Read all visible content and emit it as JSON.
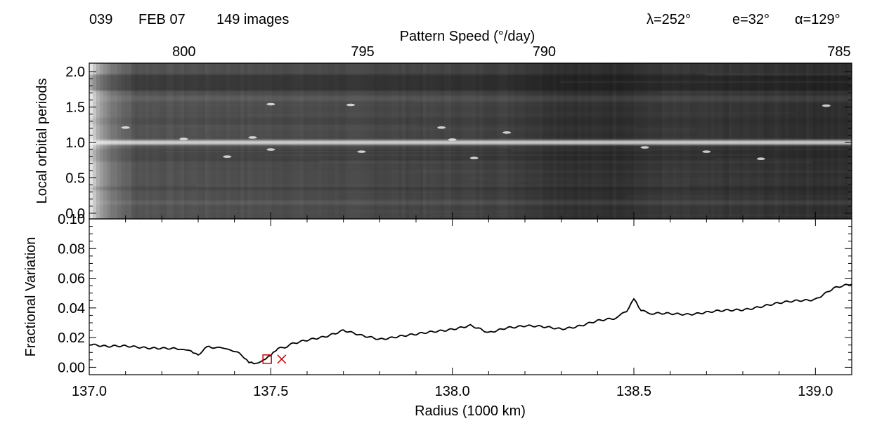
{
  "header": {
    "left": [
      "039",
      "FEB 07",
      "149 images"
    ],
    "right": [
      "λ=252°",
      "e=32°",
      "α=129°"
    ]
  },
  "chart_data": [
    {
      "type": "heatmap",
      "top_axis": {
        "label": "Pattern Speed (°/day)",
        "ticks": [
          800,
          795,
          790,
          785
        ],
        "tick_labels": [
          "800",
          "795",
          "790",
          "785"
        ],
        "tick_radius": [
          137.261,
          137.753,
          138.253,
          139.065
        ]
      },
      "ylabel": "Local orbital periods",
      "ylim": [
        -0.08,
        2.12
      ],
      "yticks": [
        0.0,
        0.5,
        1.0,
        1.5,
        2.0
      ],
      "ytick_labels": [
        "0.0",
        "0.5",
        "1.0",
        "1.5",
        "2.0"
      ],
      "xlim": [
        137.0,
        139.1
      ],
      "colormap": "grayscale",
      "features": {
        "bright_band_y": 1.0,
        "bright_left_edge_x": [
          137.0,
          137.08
        ],
        "dark_band_y": [
          1.7,
          2.0
        ]
      }
    },
    {
      "type": "line",
      "xlabel": "Radius (1000 km)",
      "ylabel": "Fractional Variation",
      "xlim": [
        137.0,
        139.1
      ],
      "ylim": [
        -0.005,
        0.1
      ],
      "xticks": [
        137.0,
        137.5,
        138.0,
        138.5,
        139.0
      ],
      "xtick_labels": [
        "137.0",
        "137.5",
        "138.0",
        "138.5",
        "139.0"
      ],
      "yticks": [
        0.0,
        0.02,
        0.04,
        0.06,
        0.08,
        0.1
      ],
      "ytick_labels": [
        "0.00",
        "0.02",
        "0.04",
        "0.06",
        "0.08",
        "0.10"
      ],
      "series": [
        {
          "color": "#000000",
          "x": [
            137.0,
            137.05,
            137.1,
            137.15,
            137.2,
            137.25,
            137.28,
            137.3,
            137.33,
            137.36,
            137.39,
            137.42,
            137.44,
            137.46,
            137.48,
            137.5,
            137.52,
            137.55,
            137.6,
            137.65,
            137.7,
            137.75,
            137.8,
            137.85,
            137.9,
            137.95,
            138.0,
            138.05,
            138.1,
            138.15,
            138.2,
            138.25,
            138.3,
            138.35,
            138.4,
            138.45,
            138.48,
            138.5,
            138.52,
            138.55,
            138.6,
            138.65,
            138.7,
            138.75,
            138.8,
            138.85,
            138.9,
            138.95,
            139.0,
            139.05,
            139.1
          ],
          "y": [
            0.016,
            0.014,
            0.014,
            0.0135,
            0.013,
            0.012,
            0.011,
            0.009,
            0.014,
            0.013,
            0.012,
            0.008,
            0.004,
            0.003,
            0.005,
            0.008,
            0.012,
            0.015,
            0.018,
            0.021,
            0.025,
            0.021,
            0.019,
            0.021,
            0.022,
            0.024,
            0.026,
            0.028,
            0.023,
            0.027,
            0.028,
            0.027,
            0.026,
            0.028,
            0.031,
            0.033,
            0.038,
            0.047,
            0.038,
            0.036,
            0.036,
            0.036,
            0.037,
            0.038,
            0.039,
            0.041,
            0.043,
            0.045,
            0.046,
            0.053,
            0.056
          ]
        }
      ],
      "markers": [
        {
          "shape": "square",
          "color": "#cc0000",
          "x": 137.49,
          "y": 0.0055
        },
        {
          "shape": "x",
          "color": "#cc0000",
          "x": 137.53,
          "y": 0.0055
        }
      ]
    }
  ]
}
